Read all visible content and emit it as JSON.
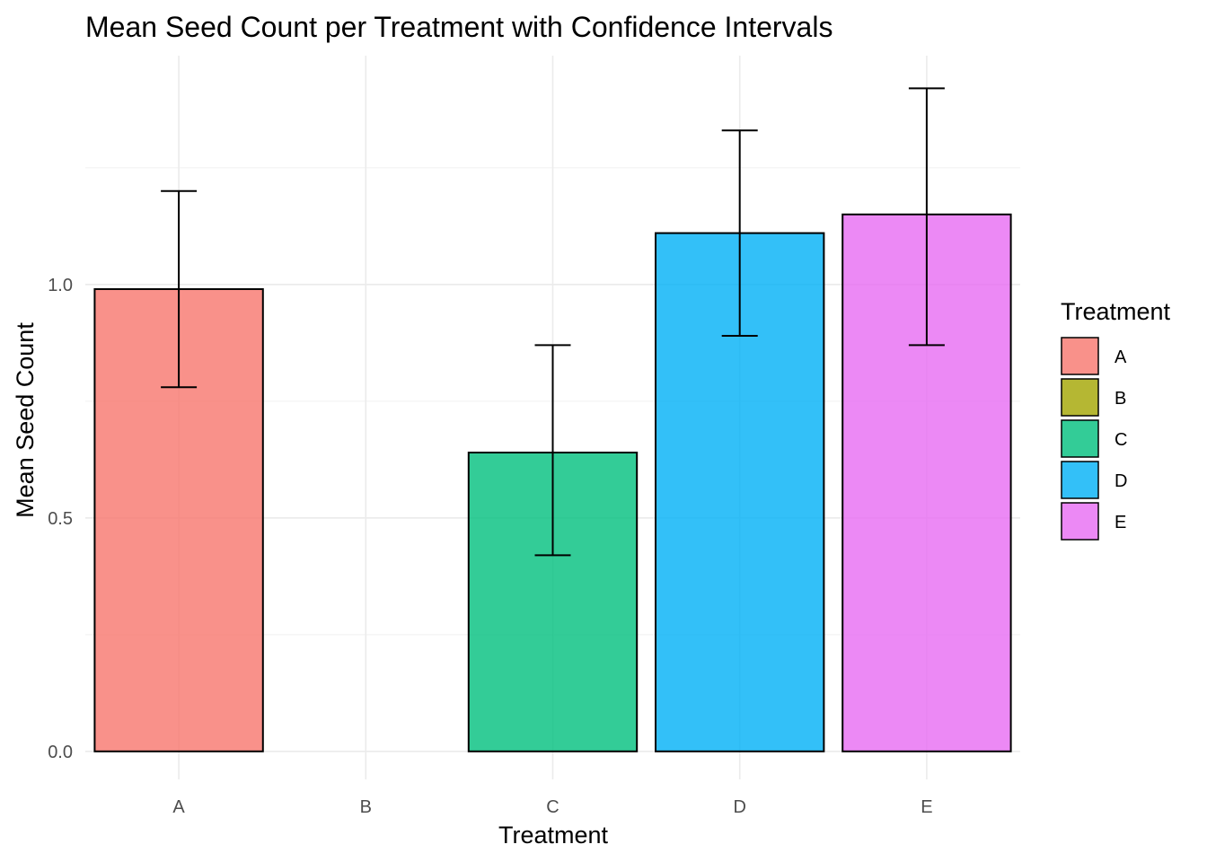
{
  "chart_data": {
    "type": "bar",
    "title": "Mean Seed Count per Treatment with Confidence Intervals",
    "xlabel": "Treatment",
    "ylabel": "Mean Seed Count",
    "categories": [
      "A",
      "B",
      "C",
      "D",
      "E"
    ],
    "values": [
      0.99,
      0.0,
      0.64,
      1.11,
      1.15
    ],
    "ci_lower": [
      0.78,
      0.0,
      0.42,
      0.89,
      0.87
    ],
    "ci_upper": [
      1.2,
      0.0,
      0.87,
      1.33,
      1.42
    ],
    "colors": [
      "#F8766D",
      "#A3A500",
      "#00BF7D",
      "#00B0F6",
      "#E76BF3"
    ],
    "fill_opacity": 0.8,
    "ylim": [
      -0.06,
      1.49
    ],
    "yticks": [
      0.0,
      0.5,
      1.0
    ],
    "ytick_labels": [
      "0.0",
      "0.5",
      "1.0"
    ],
    "grid": true,
    "legend": {
      "title": "Treatment",
      "position": "right",
      "entries": [
        "A",
        "B",
        "C",
        "D",
        "E"
      ]
    }
  }
}
